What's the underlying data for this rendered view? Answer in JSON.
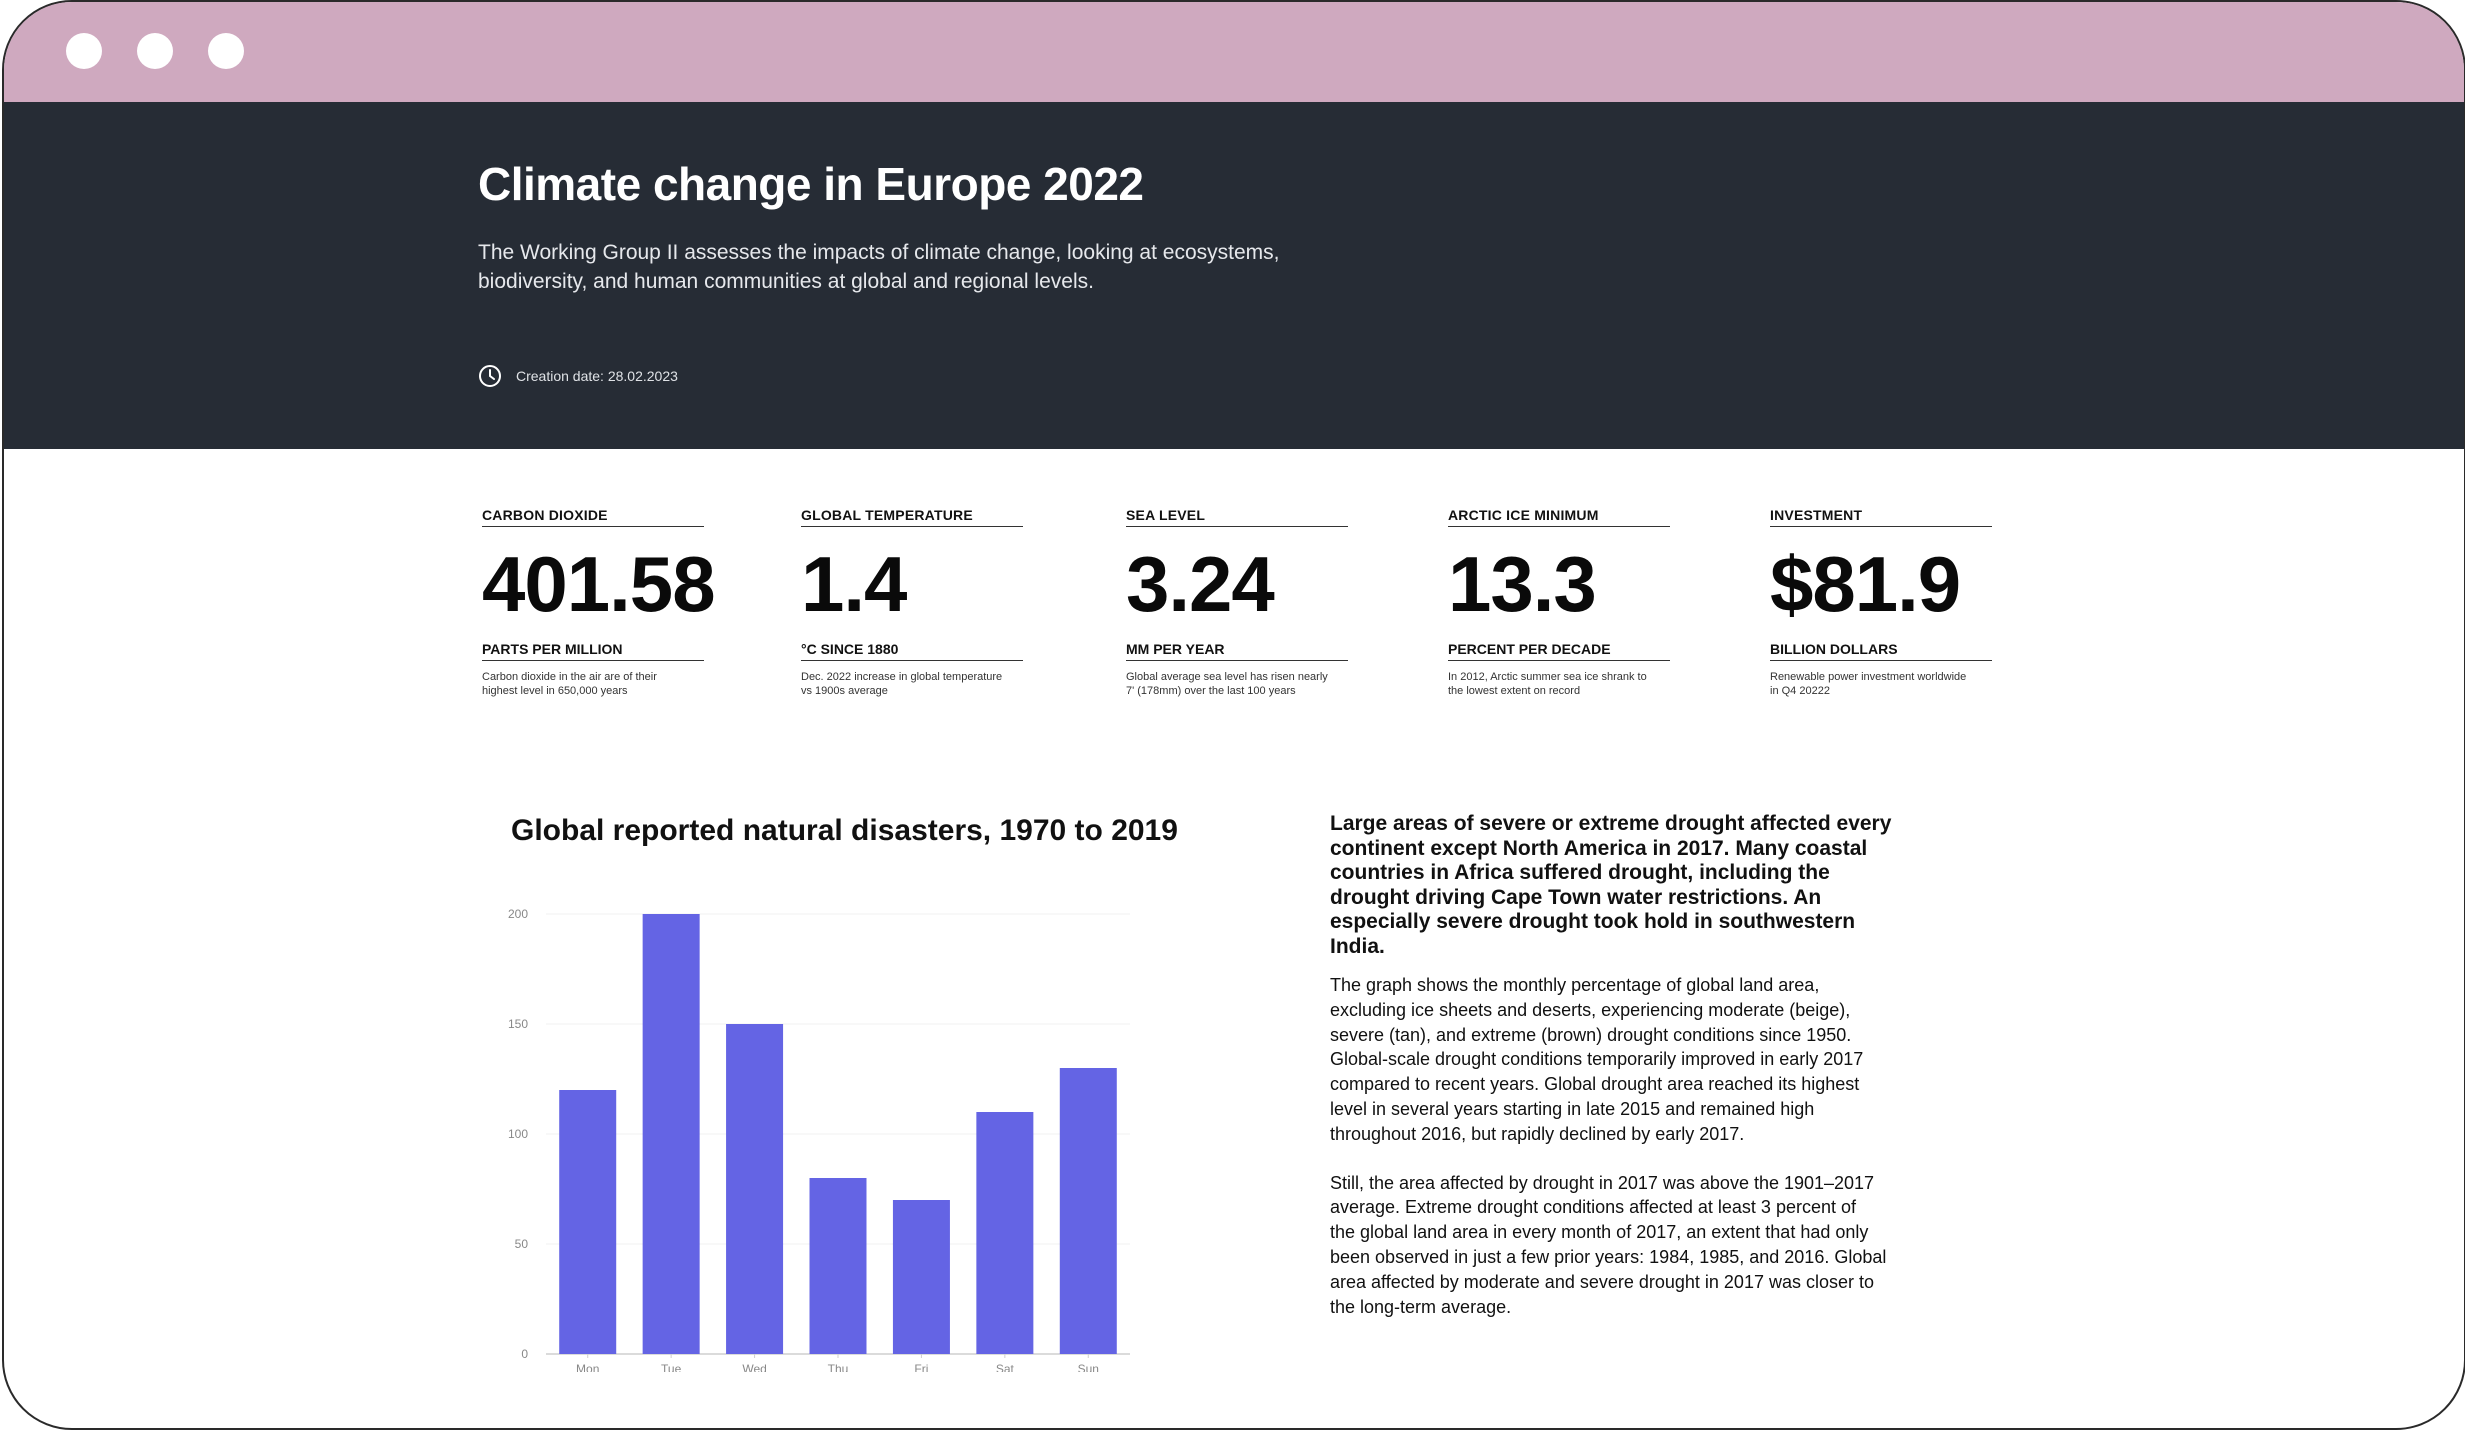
{
  "header": {
    "title": "Climate change in Europe 2022",
    "intro_lines": [
      "The Working Group II assesses the impacts of climate change, looking at ecosystems,",
      "biodiversity, and human communities at global and regional levels."
    ],
    "creation_date": "Creation date: 28.02.2023"
  },
  "stats": [
    {
      "label": "CARBON DIOXIDE",
      "value": "401.58",
      "unit": "PARTS PER MILLION",
      "desc": [
        "Carbon dioxide in the air are of their",
        "highest level in 650,000 years"
      ]
    },
    {
      "label": "GLOBAL TEMPERATURE",
      "value": "1.4",
      "unit": "°C SINCE 1880",
      "desc": [
        "Dec. 2022 increase in global temperature",
        "vs 1900s average"
      ]
    },
    {
      "label": "SEA LEVEL",
      "value": "3.24",
      "unit": "MM PER YEAR",
      "desc": [
        "Global average sea level has risen nearly",
        "7' (178mm) over the last 100 years"
      ]
    },
    {
      "label": "ARCTIC ICE MINIMUM",
      "value": "13.3",
      "unit": "PERCENT PER DECADE",
      "desc": [
        "In 2012, Arctic summer sea ice shrank to",
        "the lowest extent on record"
      ]
    },
    {
      "label": "INVESTMENT",
      "value": "$81.9",
      "unit": "BILLION DOLLARS",
      "desc": [
        "Renewable power investment worldwide",
        "in Q4 20222"
      ]
    }
  ],
  "chart_data": {
    "type": "bar",
    "title": "Global reported natural disasters, 1970 to 2019",
    "categories": [
      "Mon",
      "Tue",
      "Wed",
      "Thu",
      "Fri",
      "Sat",
      "Sun"
    ],
    "values": [
      120,
      200,
      150,
      80,
      70,
      110,
      130
    ],
    "yticks": [
      0,
      50,
      100,
      150,
      200
    ],
    "ylim": [
      0,
      200
    ],
    "xlabel": "",
    "ylabel": "",
    "grid": true,
    "bar_color": "#6464e4"
  },
  "article": {
    "lead_lines": [
      "Large areas of severe or extreme drought affected every",
      "continent except North America in 2017. Many coastal",
      "countries in Africa suffered drought, including the",
      "drought driving Cape Town water restrictions. An",
      "especially severe drought took hold in southwestern",
      "India."
    ],
    "para1_lines": [
      "The graph shows the monthly percentage of global land area,",
      "excluding ice sheets and deserts, experiencing moderate (beige),",
      "severe (tan), and extreme (brown) drought conditions since 1950.",
      "Global-scale drought conditions temporarily improved in early 2017",
      "compared to recent years. Global drought area reached its highest",
      "level in several years starting in late 2015 and remained high",
      "throughout 2016, but rapidly declined by early 2017."
    ],
    "para2_lines": [
      "Still, the area affected by drought in 2017 was above the 1901–2017",
      "average. Extreme drought conditions affected at least 3 percent of",
      "the global land area in every month of 2017, an extent that had only",
      "been observed in just a few prior years: 1984, 1985, and 2016. Global",
      "area affected by moderate and severe drought in 2017 was closer to",
      "the long-term average."
    ]
  },
  "colors": {
    "titlebar": "#cfa9bf",
    "header_bg": "#262c35",
    "bar": "#6464e4"
  }
}
